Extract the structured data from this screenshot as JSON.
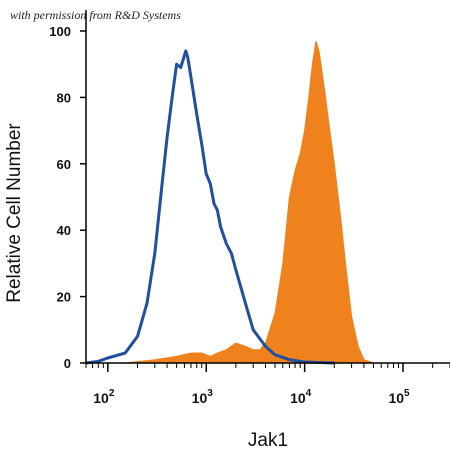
{
  "watermark": "with permission from R&D Systems",
  "chart_data": {
    "type": "area",
    "xlabel": "Jak1",
    "ylabel": "Relative Cell Number",
    "x_scale": "log",
    "xlim": [
      60,
      300000
    ],
    "ylim": [
      0,
      100
    ],
    "yticks": [
      0,
      20,
      40,
      60,
      80,
      100
    ],
    "xticks": [
      {
        "value": 100,
        "base": "10",
        "exp": "2"
      },
      {
        "value": 1000,
        "base": "10",
        "exp": "3"
      },
      {
        "value": 10000,
        "base": "10",
        "exp": "4"
      },
      {
        "value": 100000,
        "base": "10",
        "exp": "5"
      }
    ],
    "grid": false,
    "colors": {
      "filled": "#f0821e",
      "outline": "#1f4fa0"
    },
    "series": [
      {
        "style": "outline",
        "color": "#1f4fa0",
        "points": [
          [
            60,
            0
          ],
          [
            80,
            0.5
          ],
          [
            100,
            1.5
          ],
          [
            150,
            3
          ],
          [
            200,
            8
          ],
          [
            250,
            18
          ],
          [
            300,
            33
          ],
          [
            350,
            52
          ],
          [
            400,
            68
          ],
          [
            450,
            80
          ],
          [
            500,
            90
          ],
          [
            550,
            89
          ],
          [
            620,
            94
          ],
          [
            650,
            92
          ],
          [
            700,
            86
          ],
          [
            800,
            75
          ],
          [
            900,
            66
          ],
          [
            1000,
            57
          ],
          [
            1100,
            54
          ],
          [
            1200,
            48
          ],
          [
            1300,
            46
          ],
          [
            1400,
            41
          ],
          [
            1600,
            36
          ],
          [
            1800,
            33
          ],
          [
            2000,
            28
          ],
          [
            2500,
            18
          ],
          [
            3000,
            10
          ],
          [
            4000,
            5
          ],
          [
            5000,
            2.5
          ],
          [
            7000,
            1
          ],
          [
            10000,
            0.3
          ],
          [
            20000,
            0
          ]
        ]
      },
      {
        "style": "filled",
        "color": "#f0821e",
        "points": [
          [
            150,
            0
          ],
          [
            300,
            1
          ],
          [
            500,
            2
          ],
          [
            700,
            3
          ],
          [
            900,
            3
          ],
          [
            1100,
            2
          ],
          [
            1300,
            3
          ],
          [
            1600,
            4
          ],
          [
            2000,
            6
          ],
          [
            2500,
            5
          ],
          [
            3000,
            4
          ],
          [
            3500,
            4
          ],
          [
            4000,
            6
          ],
          [
            5000,
            15
          ],
          [
            6000,
            30
          ],
          [
            7000,
            50
          ],
          [
            8000,
            58
          ],
          [
            9000,
            63
          ],
          [
            10000,
            70
          ],
          [
            11000,
            80
          ],
          [
            12000,
            90
          ],
          [
            13000,
            97
          ],
          [
            14000,
            94
          ],
          [
            16000,
            82
          ],
          [
            18000,
            70
          ],
          [
            20000,
            60
          ],
          [
            23000,
            45
          ],
          [
            26000,
            30
          ],
          [
            30000,
            14
          ],
          [
            35000,
            5
          ],
          [
            40000,
            1
          ],
          [
            50000,
            0
          ]
        ]
      }
    ]
  }
}
